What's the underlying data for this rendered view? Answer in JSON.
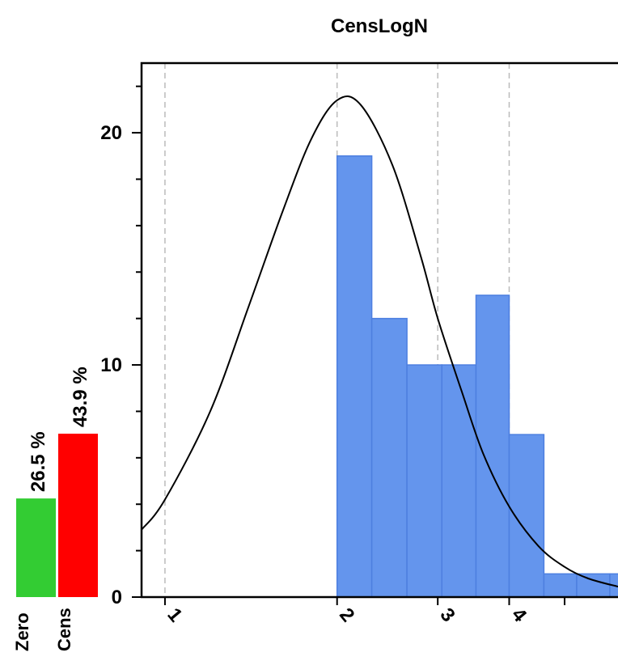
{
  "chart_data": {
    "type": "bar",
    "title": "CensLogN",
    "xlabel": "",
    "ylabel": "",
    "ylim": [
      0,
      23
    ],
    "x_scale": "log",
    "xlim": [
      0.91,
      6.2
    ],
    "x_ticks": [
      {
        "value": 1,
        "label": "1"
      },
      {
        "value": 2,
        "label": "2"
      },
      {
        "value": 3,
        "label": "3"
      },
      {
        "value": 4,
        "label": "4"
      },
      {
        "value": 5,
        "label": ""
      }
    ],
    "y_ticks": [
      {
        "value": 0,
        "label": "0"
      },
      {
        "value": 10,
        "label": "10"
      },
      {
        "value": 20,
        "label": "20"
      }
    ],
    "grid_x": true,
    "grid_y": false,
    "bar_color": "#6495ED",
    "bins": [
      {
        "x0": 2.0,
        "x1": 2.3,
        "value": 19
      },
      {
        "x0": 2.3,
        "x1": 2.65,
        "value": 12
      },
      {
        "x0": 2.65,
        "x1": 3.05,
        "value": 10
      },
      {
        "x0": 3.05,
        "x1": 3.5,
        "value": 10
      },
      {
        "x0": 3.5,
        "x1": 4.0,
        "value": 13
      },
      {
        "x0": 4.0,
        "x1": 4.6,
        "value": 7
      },
      {
        "x0": 4.6,
        "x1": 5.25,
        "value": 1
      },
      {
        "x0": 5.25,
        "x1": 6.0,
        "value": 1
      },
      {
        "x0": 6.0,
        "x1": 6.85,
        "value": 1
      }
    ],
    "fit_curve": {
      "type": "lognormal-density",
      "peak_x": 2.0,
      "peak_y": 21.4,
      "points": [
        [
          0.91,
          2.9
        ],
        [
          1.0,
          4.2
        ],
        [
          1.2,
          8.0
        ],
        [
          1.4,
          12.5
        ],
        [
          1.6,
          16.5
        ],
        [
          1.8,
          19.7
        ],
        [
          2.0,
          21.4
        ],
        [
          2.2,
          21.2
        ],
        [
          2.5,
          18.6
        ],
        [
          2.8,
          14.7
        ],
        [
          3.0,
          12.0
        ],
        [
          3.3,
          8.9
        ],
        [
          3.6,
          6.2
        ],
        [
          4.0,
          3.9
        ],
        [
          4.5,
          2.2
        ],
        [
          5.0,
          1.3
        ],
        [
          5.5,
          0.8
        ],
        [
          6.2,
          0.45
        ]
      ]
    },
    "side_bars": [
      {
        "label": "Zero",
        "percent_label": "26.5 %",
        "value": 26.5,
        "color": "#33CC33"
      },
      {
        "label": "Cens",
        "percent_label": "43.9 %",
        "value": 43.9,
        "color": "#FF0000"
      }
    ]
  }
}
